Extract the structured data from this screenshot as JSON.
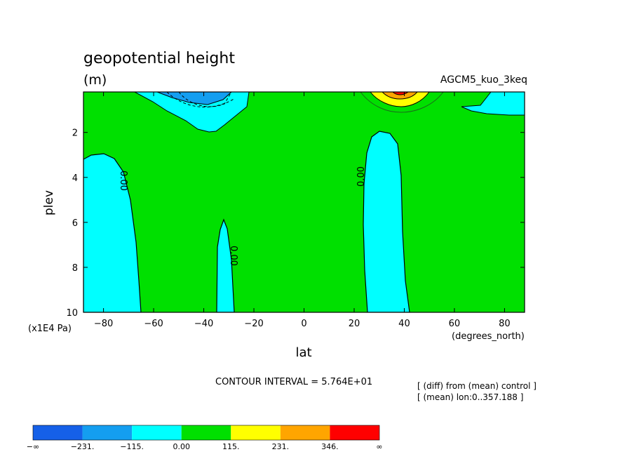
{
  "chart_data": {
    "type": "heatmap",
    "title": "geopotential height",
    "units": "(m)",
    "dataset": "AGCM5_kuo_3keq",
    "xlabel": "lat",
    "xunits": "(degrees_north)",
    "ylabel": "plev",
    "yunits": "(x1E4 Pa)",
    "xlim": [
      -88,
      88
    ],
    "ylim": [
      10,
      0.2
    ],
    "xticks": [
      "-80",
      "-60",
      "-40",
      "-20",
      "0",
      "20",
      "40",
      "60",
      "80"
    ],
    "yticks": [
      "2",
      "4",
      "6",
      "8",
      "10"
    ],
    "contour_interval_text": "CONTOUR INTERVAL = 5.764E+01",
    "contour_labels": [
      "0.00",
      "0.00",
      "0.00"
    ],
    "notes": [
      "[ (diff) from (mean) control ]",
      "[ (mean) lon:0..357.188 ]"
    ],
    "colorbar": {
      "labels": [
        "-∞",
        "-231.",
        "-115.",
        "0.00",
        "115.",
        "231.",
        "346.",
        "∞"
      ],
      "colors": [
        "#1560e8",
        "#149ef0",
        "#00ffff",
        "#00e000",
        "#ffff00",
        "#ffa500",
        "#ff0000"
      ]
    },
    "regions": [
      {
        "kind": "background",
        "level": "0 to 115",
        "color": "#00e000"
      },
      {
        "kind": "cyan-lobe",
        "location": "south high latitudes, 3-10 x1E4 Pa",
        "level": "-115 to 0"
      },
      {
        "kind": "cyan-lobe",
        "location": "around 33S, 5.8-10 x1E4 Pa",
        "level": "-115 to 0"
      },
      {
        "kind": "cyan-lobe",
        "location": "around 30N, 1.9-10 x1E4 Pa",
        "level": "-115 to 0"
      },
      {
        "kind": "cyan-region",
        "location": "upper levels 70S-25S",
        "level": "-115 to 0"
      },
      {
        "kind": "cyan-region",
        "location": "upper levels near 70N-88N",
        "level": "-115 to 0"
      },
      {
        "kind": "max",
        "location": "top level near 40N",
        "level": "above 346"
      }
    ]
  }
}
